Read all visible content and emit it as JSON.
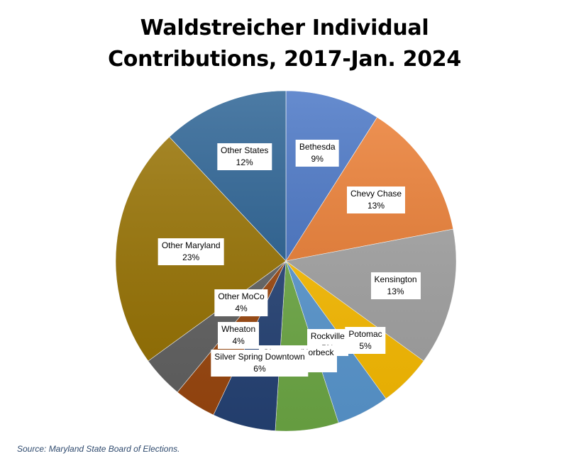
{
  "chart_data": {
    "type": "pie",
    "title_lines": [
      "Waldstreicher Individual",
      "Contributions, 2017-Jan. 2024"
    ],
    "start_angle_deg": 0,
    "direction": "clockwise",
    "slices": [
      {
        "label": "Bethesda",
        "value": 9,
        "value_label": "9%",
        "color": "#4472C4"
      },
      {
        "label": "Chevy Chase",
        "value": 13,
        "value_label": "13%",
        "color": "#ED7D31"
      },
      {
        "label": "Kensington",
        "value": 13,
        "value_label": "13%",
        "color": "#A5A5A5"
      },
      {
        "label": "Potomac",
        "value": 5,
        "value_label": "5%",
        "color": "#FFC000"
      },
      {
        "label": "Rockville",
        "value": 5,
        "value_label": "5%",
        "color": "#5B9BD5"
      },
      {
        "label": "Glenmont/Norbeck",
        "value": 6,
        "value_label": "6%",
        "color": "#70AD47"
      },
      {
        "label": "Silver Spring Downtown",
        "value": 6,
        "value_label": "6%",
        "color": "#264478"
      },
      {
        "label": "Wheaton",
        "value": 4,
        "value_label": "4%",
        "color": "#9E480E"
      },
      {
        "label": "Other MoCo",
        "value": 4,
        "value_label": "4%",
        "color": "#636363"
      },
      {
        "label": "Other Maryland",
        "value": 23,
        "value_label": "23%",
        "color": "#997300"
      },
      {
        "label": "Other States",
        "value": 12,
        "value_label": "12%",
        "color": "#255E91"
      }
    ]
  },
  "source": "Source: Maryland State Board of Elections."
}
